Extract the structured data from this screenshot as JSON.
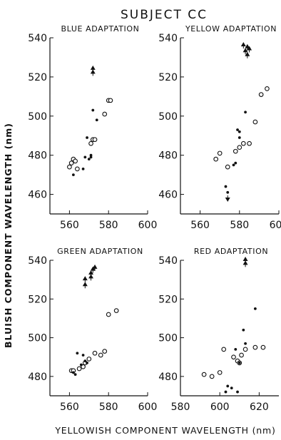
{
  "figure": {
    "title": "SUBJECT CC",
    "ylabel": "BLUISH COMPONENT WAVELENGTH (nm)",
    "xlabel": "YELLOWISH COMPONENT WAVELENGTH (nm)"
  },
  "chart_data": [
    {
      "type": "scatter",
      "title": "BLUE ADAPTATION",
      "xlabel": "YELLOWISH COMPONENT WAVELENGTH (nm)",
      "ylabel": "BLUISH COMPONENT WAVELENGTH (nm)",
      "xlim": [
        550,
        600
      ],
      "ylim": [
        450,
        540
      ],
      "xticks": [
        560,
        580,
        600
      ],
      "yticks": [
        460,
        480,
        500,
        520,
        540
      ],
      "grid": false,
      "series": [
        {
          "marker": "open-circle",
          "points": [
            [
              560,
              474
            ],
            [
              561,
              476
            ],
            [
              562,
              478
            ],
            [
              563,
              477
            ],
            [
              564,
              473
            ],
            [
              571,
              486
            ],
            [
              572,
              488
            ],
            [
              573,
              488
            ],
            [
              578,
              501
            ],
            [
              580,
              508
            ],
            [
              581,
              508
            ]
          ]
        },
        {
          "marker": "filled-dot",
          "points": [
            [
              562,
              470
            ],
            [
              567,
              473
            ],
            [
              568,
              479
            ],
            [
              569,
              489
            ],
            [
              570,
              478
            ],
            [
              571,
              479
            ],
            [
              571,
              480
            ],
            [
              572,
              503
            ],
            [
              574,
              498
            ]
          ]
        },
        {
          "marker": "arrow-up",
          "points": [
            [
              572,
              524
            ],
            [
              572,
              522
            ]
          ]
        }
      ]
    },
    {
      "type": "scatter",
      "title": "YELLOW ADAPTATION",
      "xlabel": "YELLOWISH COMPONENT WAVELENGTH (nm)",
      "ylabel": "BLUISH COMPONENT WAVELENGTH (nm)",
      "xlim": [
        550,
        600
      ],
      "ylim": [
        450,
        540
      ],
      "xticks": [
        560,
        580,
        600
      ],
      "yticks": [
        460,
        480,
        500,
        520,
        540
      ],
      "grid": false,
      "series": [
        {
          "marker": "open-circle",
          "points": [
            [
              568,
              478
            ],
            [
              570,
              481
            ],
            [
              574,
              474
            ],
            [
              578,
              482
            ],
            [
              580,
              484
            ],
            [
              582,
              486
            ],
            [
              585,
              486
            ],
            [
              588,
              497
            ],
            [
              591,
              511
            ],
            [
              594,
              514
            ]
          ]
        },
        {
          "marker": "filled-dot",
          "points": [
            [
              573,
              464
            ],
            [
              574,
              461
            ],
            [
              577,
              475
            ],
            [
              578,
              476
            ],
            [
              579,
              493
            ],
            [
              580,
              492
            ],
            [
              580,
              489
            ],
            [
              583,
              502
            ]
          ]
        },
        {
          "marker": "arrow-up",
          "points": [
            [
              582,
              536
            ],
            [
              583,
              533
            ],
            [
              584,
              535
            ],
            [
              585,
              534
            ],
            [
              584,
              531
            ]
          ]
        },
        {
          "marker": "arrow-down",
          "points": [
            [
              574,
              458
            ]
          ]
        }
      ]
    },
    {
      "type": "scatter",
      "title": "GREEN ADAPTATION",
      "xlabel": "YELLOWISH COMPONENT WAVELENGTH (nm)",
      "ylabel": "BLUISH COMPONENT WAVELENGTH (nm)",
      "xlim": [
        550,
        600
      ],
      "ylim": [
        470,
        540
      ],
      "xticks": [
        560,
        580,
        600
      ],
      "yticks": [
        480,
        500,
        520,
        540
      ],
      "grid": false,
      "series": [
        {
          "marker": "open-circle",
          "points": [
            [
              561,
              483
            ],
            [
              562,
              483
            ],
            [
              565,
              484
            ],
            [
              567,
              485
            ],
            [
              568,
              487
            ],
            [
              570,
              489
            ],
            [
              573,
              492
            ],
            [
              576,
              491
            ],
            [
              578,
              493
            ],
            [
              580,
              512
            ],
            [
              584,
              514
            ]
          ]
        },
        {
          "marker": "filled-dot",
          "points": [
            [
              562,
              482
            ],
            [
              563,
              481
            ],
            [
              564,
              492
            ],
            [
              566,
              486
            ],
            [
              567,
              491
            ],
            [
              568,
              488
            ],
            [
              569,
              487
            ]
          ]
        },
        {
          "marker": "arrow-up",
          "points": [
            [
              568,
              530
            ],
            [
              568,
              527
            ],
            [
              571,
              531
            ],
            [
              571,
              533
            ],
            [
              572,
              535
            ],
            [
              573,
              536
            ]
          ]
        }
      ]
    },
    {
      "type": "scatter",
      "title": "RED ADAPTATION",
      "xlabel": "YELLOWISH COMPONENT WAVELENGTH (nm)",
      "ylabel": "BLUISH COMPONENT WAVELENGTH (nm)",
      "xlim": [
        580,
        630
      ],
      "ylim": [
        470,
        540
      ],
      "xticks": [
        580,
        600,
        620
      ],
      "yticks": [
        480,
        500,
        520,
        540
      ],
      "grid": false,
      "series": [
        {
          "marker": "open-circle",
          "points": [
            [
              592,
              481
            ],
            [
              596,
              480
            ],
            [
              600,
              482
            ],
            [
              602,
              494
            ],
            [
              607,
              490
            ],
            [
              609,
              488
            ],
            [
              610,
              487
            ],
            [
              611,
              491
            ],
            [
              613,
              494
            ],
            [
              618,
              495
            ],
            [
              622,
              495
            ]
          ]
        },
        {
          "marker": "filled-dot",
          "points": [
            [
              603,
              472
            ],
            [
              604,
              475
            ],
            [
              606,
              474
            ],
            [
              609,
              472
            ],
            [
              608,
              494
            ],
            [
              610,
              487
            ],
            [
              612,
              504
            ],
            [
              613,
              497
            ],
            [
              618,
              515
            ]
          ]
        },
        {
          "marker": "arrow-up",
          "points": [
            [
              613,
              540
            ],
            [
              613,
              538
            ]
          ]
        }
      ]
    }
  ]
}
